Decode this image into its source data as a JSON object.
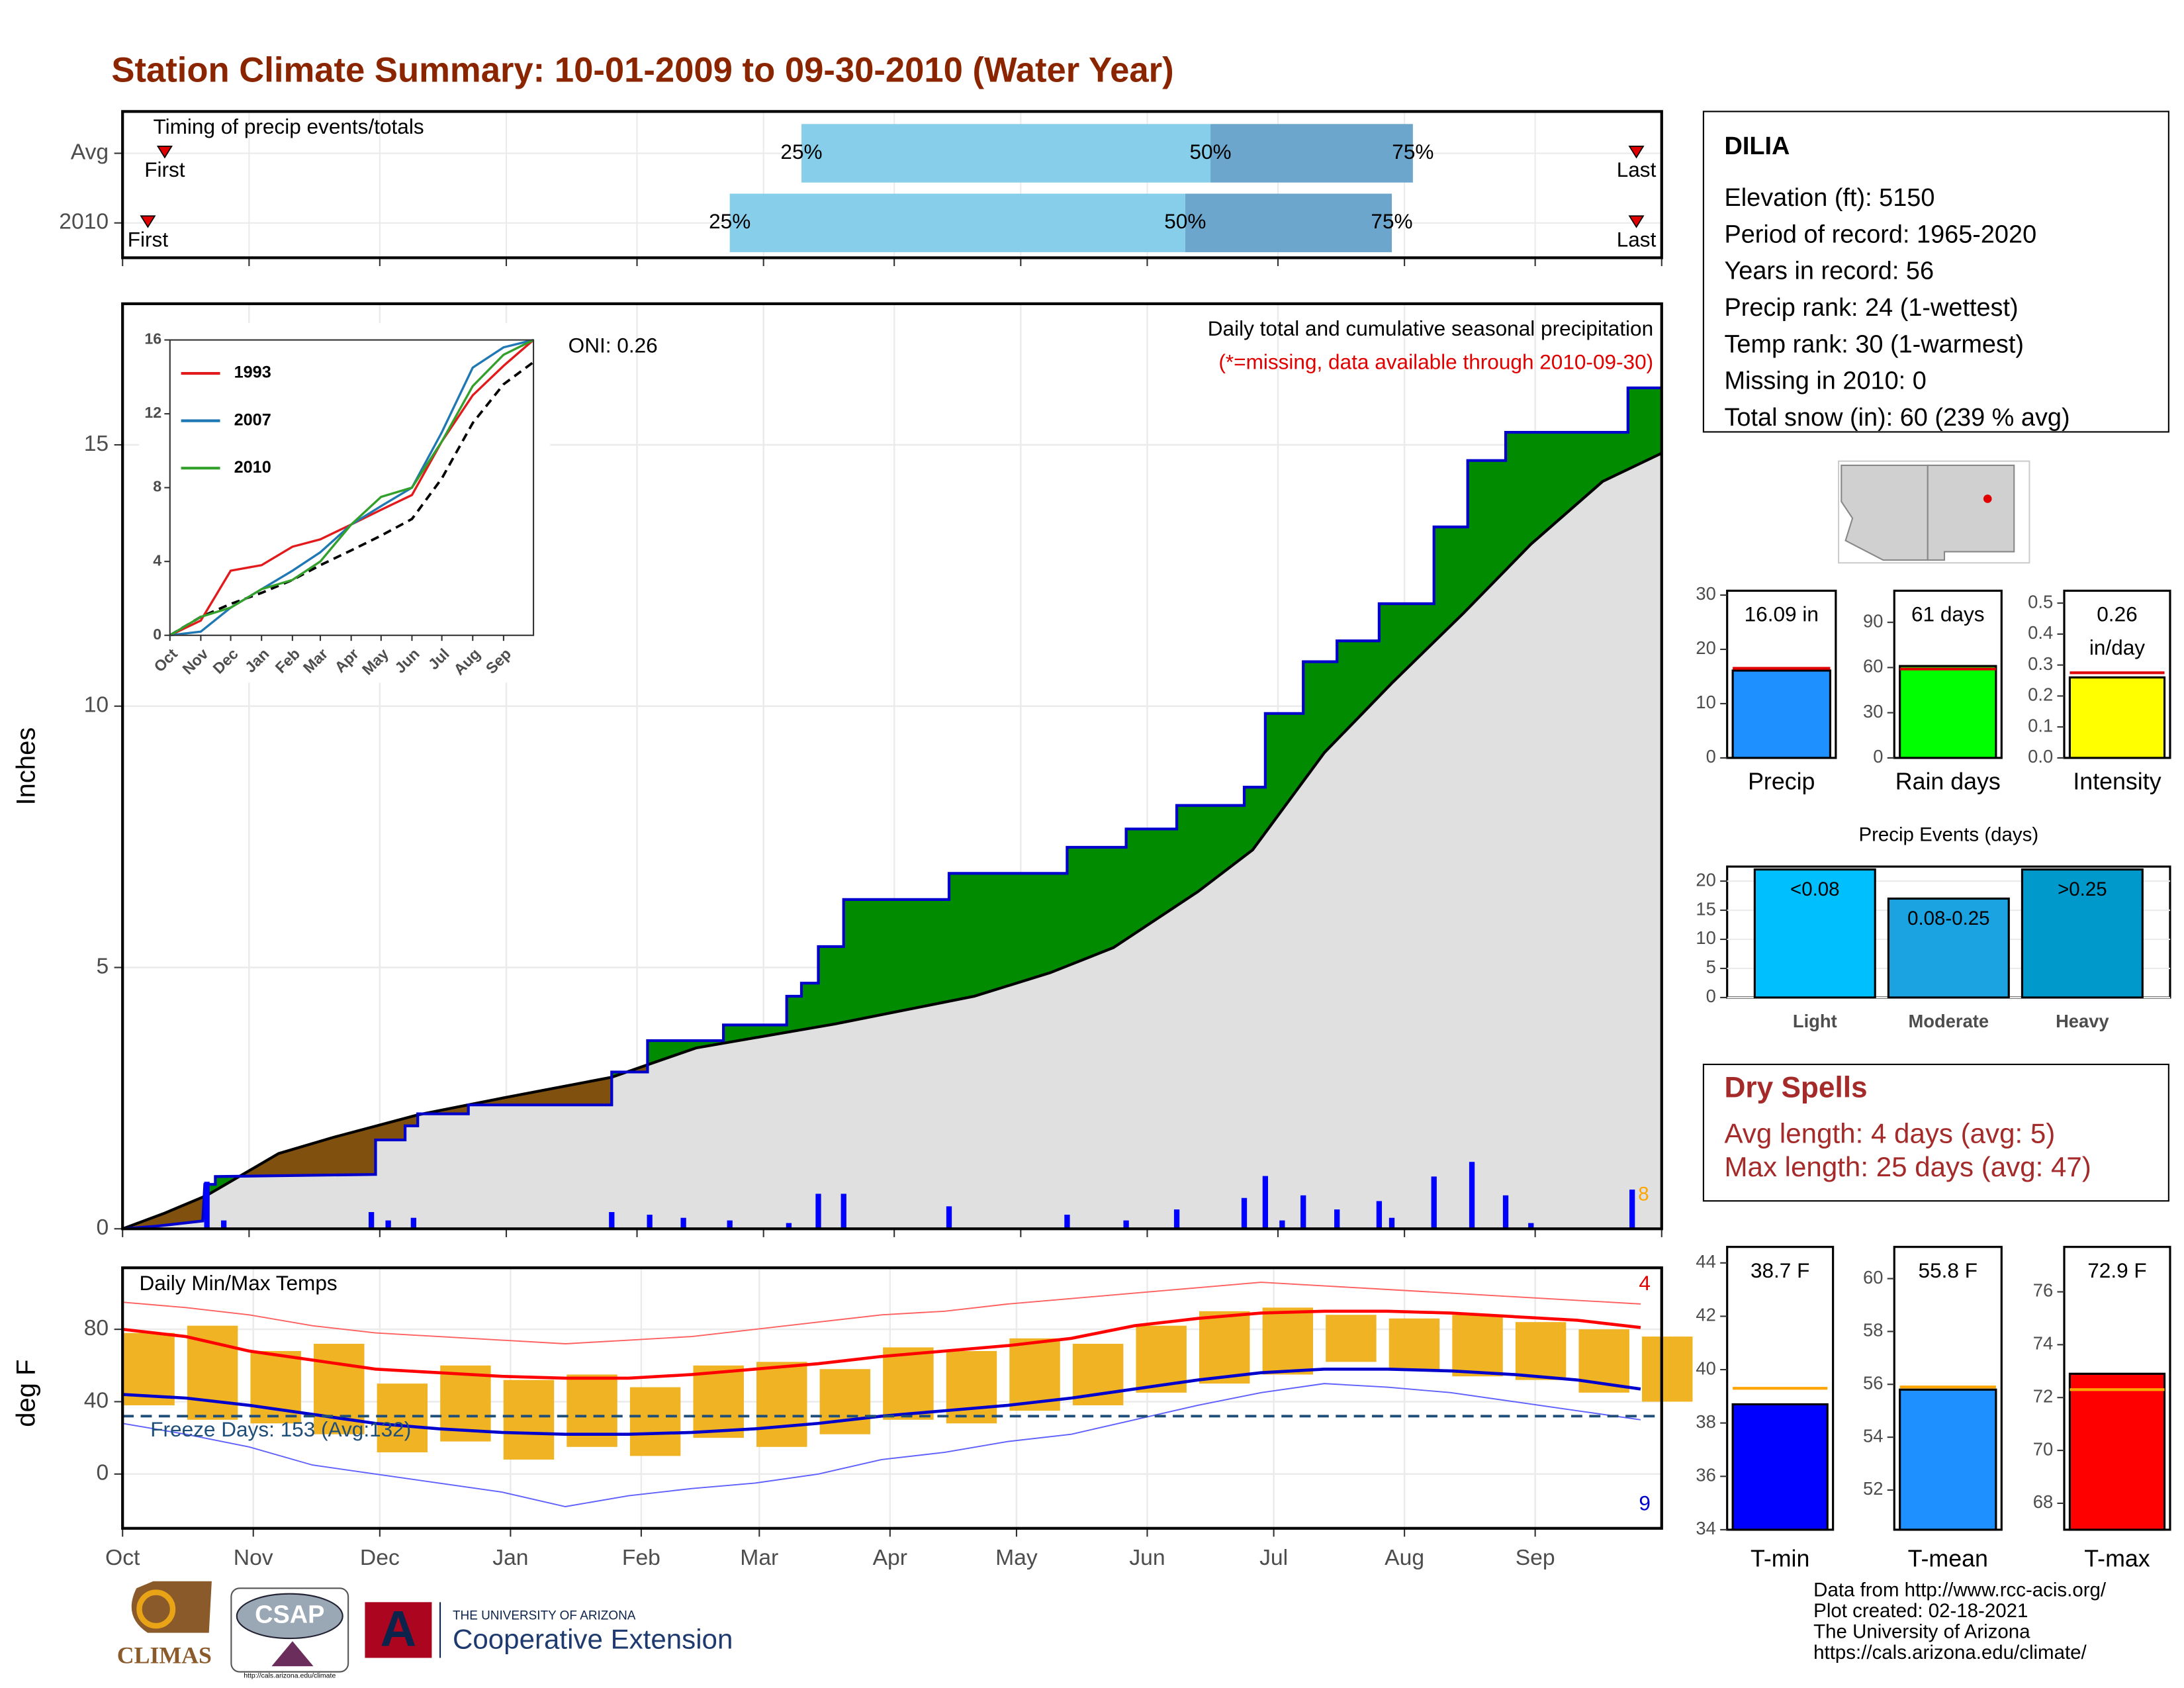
{
  "title": "Station Climate Summary: 10-01-2009 to 09-30-2010 (Water Year)",
  "chart_data": [
    {
      "type": "timing",
      "title": "Timing of precip events/totals",
      "categories": [
        "Avg",
        "2010"
      ],
      "first": [
        10,
        6
      ],
      "p25": [
        161,
        144
      ],
      "p50": [
        258,
        252
      ],
      "p75": [
        306,
        301
      ],
      "last": [
        359,
        359
      ],
      "first_label": "First",
      "last_label": "Last",
      "p25_label": "25%",
      "p50_label": "50%",
      "p75_label": "75%",
      "xlim": [
        0,
        365
      ],
      "xticks": [
        0,
        30,
        61,
        91,
        122,
        152,
        183,
        213,
        243,
        274,
        304,
        335,
        365
      ],
      "colors": {
        "early": "#87ceeb",
        "late": "#6ca6cd",
        "marker": "#e00000"
      }
    },
    {
      "type": "cumulative",
      "subtitle": "Daily total and cumulative seasonal precipitation",
      "note": "(*=missing, data available through 2010-09-30)",
      "annotation": "ONI: 0.26",
      "count_label": "8",
      "ylabel": "Inches",
      "x": [
        0,
        8,
        19,
        19.5,
        22,
        22,
        60,
        60,
        67,
        67,
        70,
        70,
        82,
        82,
        116,
        116,
        124.5,
        124.5,
        142.5,
        142.5,
        157.5,
        157.5,
        161,
        161,
        165,
        165,
        171,
        171,
        196,
        196,
        224,
        224,
        238,
        238,
        250,
        250,
        266,
        266,
        271,
        271,
        280,
        280,
        288,
        288,
        298,
        298,
        311,
        311,
        319,
        319,
        328,
        328,
        357,
        357,
        365
      ],
      "cumulative": [
        0,
        0.05,
        0.15,
        0.85,
        0.85,
        1.0,
        1.04,
        1.7,
        1.7,
        1.97,
        1.97,
        2.2,
        2.2,
        2.37,
        2.37,
        3.0,
        3.0,
        3.6,
        3.6,
        3.9,
        3.9,
        4.45,
        4.45,
        4.7,
        4.7,
        5.4,
        5.4,
        6.3,
        6.3,
        6.8,
        6.8,
        7.3,
        7.3,
        7.65,
        7.65,
        8.1,
        8.1,
        8.45,
        8.45,
        9.86,
        9.86,
        10.85,
        10.85,
        11.25,
        11.25,
        11.96,
        11.96,
        13.43,
        13.43,
        14.7,
        14.7,
        15.24,
        15.24,
        16.09,
        16.09
      ],
      "average_x": [
        0,
        10,
        20,
        37,
        50,
        70,
        90,
        116,
        136,
        169,
        202,
        220,
        235,
        255,
        268,
        285,
        301,
        318,
        334,
        351,
        365
      ],
      "average": [
        0,
        0.3,
        0.64,
        1.44,
        1.75,
        2.18,
        2.5,
        2.9,
        3.46,
        3.92,
        4.45,
        4.9,
        5.38,
        6.45,
        7.25,
        9.11,
        10.44,
        11.78,
        13.1,
        14.3,
        14.84
      ],
      "daily_x": [
        20,
        24,
        59,
        63,
        69,
        116,
        125,
        133,
        144,
        158,
        165,
        171,
        196,
        224,
        238,
        250,
        266,
        271,
        275,
        280,
        288,
        298,
        301,
        311,
        320,
        328,
        334,
        358
      ],
      "daily": [
        0.9,
        0.16,
        0.32,
        0.16,
        0.21,
        0.32,
        0.27,
        0.21,
        0.16,
        0.11,
        0.67,
        0.67,
        0.43,
        0.27,
        0.16,
        0.37,
        0.59,
        1.01,
        0.16,
        0.64,
        0.37,
        0.53,
        0.21,
        1.0,
        1.28,
        0.64,
        0.11,
        0.75
      ],
      "xlim": [
        0,
        365
      ],
      "ylim": [
        0,
        17.7
      ],
      "yticks": [
        0,
        5,
        10,
        15
      ],
      "xticks": [
        0,
        30,
        61,
        91,
        122,
        152,
        183,
        213,
        243,
        274,
        304,
        335,
        365
      ],
      "colors": {
        "above": "#008b00",
        "below": "#80500f",
        "base": "#e0e0e0",
        "line": "#0000cd",
        "average": "#000000",
        "daily": "#0000ff",
        "count": "#ffa500",
        "note": "#e00000"
      }
    },
    {
      "type": "line",
      "x": [
        0,
        31,
        61,
        92,
        123,
        151,
        182,
        212,
        243,
        273,
        304,
        335,
        365
      ],
      "series": [
        {
          "name": "1993",
          "color": "#e31a1c",
          "values": [
            0,
            0.8,
            3.5,
            3.8,
            4.8,
            5.2,
            6,
            6.8,
            7.6,
            10.5,
            13,
            14.6,
            16
          ]
        },
        {
          "name": "2007",
          "color": "#1f78b4",
          "values": [
            0,
            0.2,
            1.5,
            2.5,
            3.5,
            4.5,
            6,
            7,
            8,
            11,
            14.5,
            15.6,
            16
          ]
        },
        {
          "name": "2010",
          "color": "#33a02c",
          "values": [
            0,
            1,
            1.5,
            2.5,
            3,
            4,
            6,
            7.5,
            8,
            10.5,
            13.5,
            15.2,
            16
          ]
        }
      ],
      "average": [
        0,
        1,
        1.7,
        2.3,
        3,
        3.8,
        4.6,
        5.4,
        6.3,
        8.5,
        11.5,
        13.6,
        14.8
      ],
      "xlim": [
        0,
        365
      ],
      "ylim": [
        0,
        16
      ],
      "yticks": [
        0,
        4,
        8,
        12,
        16
      ],
      "xticks": [
        {
          "value": 0,
          "label": "Oct"
        },
        {
          "value": 31,
          "label": "Nov"
        },
        {
          "value": 61,
          "label": "Dec"
        },
        {
          "value": 92,
          "label": "Jan"
        },
        {
          "value": 123,
          "label": "Feb"
        },
        {
          "value": 151,
          "label": "Mar"
        },
        {
          "value": 182,
          "label": "Apr"
        },
        {
          "value": 212,
          "label": "May"
        },
        {
          "value": 243,
          "label": "Jun"
        },
        {
          "value": 273,
          "label": "Jul"
        },
        {
          "value": 304,
          "label": "Aug"
        },
        {
          "value": 335,
          "label": "Sep"
        }
      ]
    },
    {
      "type": "temp",
      "title": "Daily Min/Max Temps",
      "freeze_label": "Freeze Days: 153 (Avg:132)",
      "high_count": "4",
      "low_count": "9",
      "ylabel": "deg F",
      "x": [
        0,
        15,
        30,
        45,
        60,
        75,
        90,
        105,
        120,
        135,
        150,
        165,
        180,
        195,
        210,
        225,
        240,
        255,
        270,
        285,
        300,
        315,
        330,
        345,
        360
      ],
      "normal_max": [
        80,
        76,
        68,
        63,
        58,
        56,
        54,
        53,
        53,
        55,
        58,
        61,
        65,
        68,
        71,
        75,
        82,
        86,
        89,
        90,
        90,
        89,
        87,
        85,
        81
      ],
      "normal_min": [
        44,
        42,
        38,
        33,
        28,
        25,
        23,
        22,
        22,
        23,
        25,
        28,
        32,
        35,
        38,
        42,
        47,
        52,
        56,
        58,
        58,
        57,
        55,
        52,
        47
      ],
      "daily_max": [
        78,
        82,
        68,
        72,
        50,
        60,
        52,
        55,
        48,
        60,
        62,
        58,
        70,
        68,
        75,
        72,
        82,
        90,
        92,
        88,
        86,
        88,
        84,
        80,
        76
      ],
      "daily_min": [
        38,
        30,
        28,
        22,
        12,
        18,
        8,
        15,
        10,
        20,
        15,
        22,
        30,
        28,
        35,
        38,
        45,
        50,
        55,
        62,
        58,
        54,
        52,
        45,
        40
      ],
      "record_max": [
        95,
        92,
        88,
        82,
        78,
        76,
        74,
        72,
        74,
        76,
        80,
        84,
        88,
        90,
        94,
        97,
        100,
        103,
        106,
        104,
        102,
        100,
        98,
        96,
        94
      ],
      "record_min": [
        28,
        22,
        15,
        5,
        0,
        -5,
        -10,
        -18,
        -12,
        -8,
        -5,
        0,
        8,
        12,
        18,
        22,
        30,
        38,
        45,
        50,
        48,
        45,
        40,
        35,
        30
      ],
      "freeze_line": 32,
      "xlim": [
        0,
        365
      ],
      "ylim": [
        -30,
        114
      ],
      "yticks": [
        0,
        40,
        80
      ],
      "xticks": [
        {
          "value": 0,
          "label": "Oct"
        },
        {
          "value": 31,
          "label": "Nov"
        },
        {
          "value": 61,
          "label": "Dec"
        },
        {
          "value": 92,
          "label": "Jan"
        },
        {
          "value": 123,
          "label": "Feb"
        },
        {
          "value": 151,
          "label": "Mar"
        },
        {
          "value": 182,
          "label": "Apr"
        },
        {
          "value": 212,
          "label": "May"
        },
        {
          "value": 243,
          "label": "Jun"
        },
        {
          "value": 273,
          "label": "Jul"
        },
        {
          "value": 304,
          "label": "Aug"
        },
        {
          "value": 335,
          "label": "Sep"
        }
      ],
      "colors": {
        "range": "#f0b323",
        "normal_max": "#ff0000",
        "normal_min": "#0000cd",
        "record_max": "#ff6060",
        "record_min": "#6060ff",
        "freeze": "#1f4e79"
      }
    },
    {
      "type": "bar",
      "categories": [
        "Precip"
      ],
      "values": [
        16.09
      ],
      "value_labels": [
        "16.09 in"
      ],
      "average": 16.5,
      "color": "#1e90ff",
      "average_color": "#e00000",
      "ylim": [
        0,
        30.8
      ],
      "yticks": [
        0,
        10,
        20,
        30
      ]
    },
    {
      "type": "bar",
      "categories": [
        "Rain days"
      ],
      "values": [
        61
      ],
      "value_labels": [
        "61 days"
      ],
      "average": 59,
      "color": "#00ff00",
      "average_color": "#e00000",
      "ylim": [
        0,
        111
      ],
      "yticks": [
        0,
        30,
        60,
        90
      ]
    },
    {
      "type": "bar",
      "categories": [
        "Intensity"
      ],
      "values": [
        0.26
      ],
      "value_labels": [
        "0.26 in/day"
      ],
      "average": 0.275,
      "color": "#ffff00",
      "average_color": "#e00000",
      "ylim": [
        0,
        0.54
      ],
      "yticks": [
        {
          "value": 0,
          "label": "0.0"
        },
        0.1,
        0.2,
        0.3,
        0.4,
        0.5
      ]
    },
    {
      "type": "bar",
      "title": "Precip Events (days)",
      "categories": [
        "Light",
        "Moderate",
        "Heavy"
      ],
      "values": [
        22,
        17,
        22
      ],
      "ranges": [
        "<0.08",
        "0.08-0.25",
        ">0.25"
      ],
      "colors": [
        "#00bfff",
        "#1aa3e0",
        "#0099cc"
      ],
      "ylim": [
        0,
        22.5
      ],
      "yticks": [
        0,
        5,
        10,
        15,
        20
      ]
    },
    {
      "type": "bar",
      "categories": [
        "T-min"
      ],
      "values": [
        38.7
      ],
      "value_labels": [
        "38.7 F"
      ],
      "average": 39.3,
      "color": "#0000ff",
      "average_color": "#ffa500",
      "ylim": [
        34,
        44.6
      ],
      "yticks": [
        34,
        36,
        38,
        40,
        42,
        44
      ]
    },
    {
      "type": "bar",
      "categories": [
        "T-mean"
      ],
      "values": [
        55.8
      ],
      "value_labels": [
        "55.8 F"
      ],
      "average": 55.9,
      "color": "#1e90ff",
      "average_color": "#ffa500",
      "ylim": [
        50.5,
        61.2
      ],
      "yticks": [
        52,
        54,
        56,
        58,
        60
      ]
    },
    {
      "type": "bar",
      "categories": [
        "T-max"
      ],
      "values": [
        72.9
      ],
      "value_labels": [
        "72.9 F"
      ],
      "average": 72.3,
      "color": "#ff0000",
      "average_color": "#ffa500",
      "ylim": [
        67,
        77.7
      ],
      "yticks": [
        68,
        70,
        72,
        74,
        76
      ]
    }
  ],
  "station": {
    "name": "DILIA",
    "lines": [
      "Elevation (ft): 5150",
      "Period of record: 1965-2020",
      "Years in record: 56",
      "Precip rank: 24 (1-wettest)",
      "Temp rank: 30 (1-warmest)",
      "Missing in 2010: 0",
      "Total snow (in): 60 (239 % avg)"
    ]
  },
  "dry_spells": {
    "title": "Dry Spells",
    "lines": [
      "Avg length: 4 days (avg: 5)",
      "Max length: 25 days (avg: 47)"
    ]
  },
  "footer": {
    "credits": [
      "Data from http://www.rcc-acis.org/",
      "Plot created: 02-18-2021",
      "The University of Arizona",
      "https://cals.arizona.edu/climate/"
    ],
    "climas": "CLIMAS",
    "csap": "CSAP",
    "csap_url": "http://cals.arizona.edu/climate",
    "university": "THE UNIVERSITY OF ARIZONA",
    "extension": "Cooperative Extension"
  }
}
